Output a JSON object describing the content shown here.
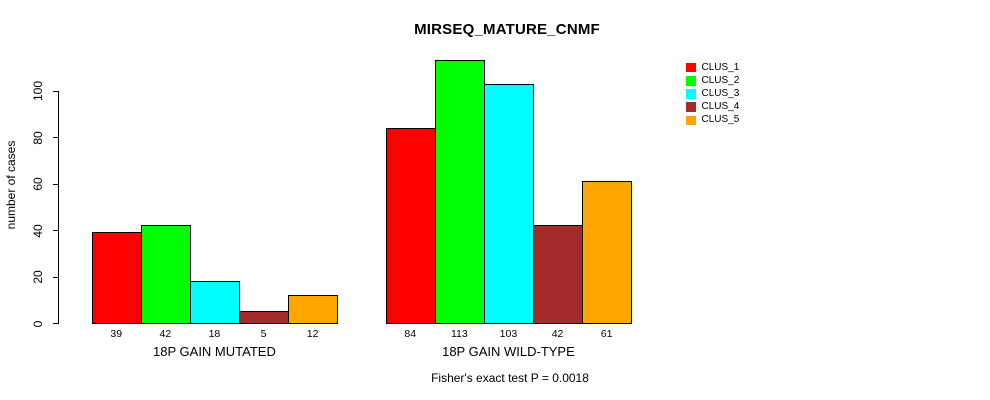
{
  "chart_data": {
    "type": "bar",
    "title": "MIRSEQ_MATURE_CNMF",
    "ylabel": "number of cases",
    "xlabel": "",
    "yticks": [
      0,
      20,
      40,
      60,
      80,
      100
    ],
    "ylim": [
      0,
      113
    ],
    "grid": false,
    "legend_position": "top-right",
    "bar_value_labels_shown": true,
    "categories": [
      "18P GAIN MUTATED",
      "18P GAIN WILD-TYPE"
    ],
    "series": [
      {
        "name": "CLUS_1",
        "color": "#ff0000",
        "values": [
          39,
          84
        ]
      },
      {
        "name": "CLUS_2",
        "color": "#00ff00",
        "values": [
          42,
          113
        ]
      },
      {
        "name": "CLUS_3",
        "color": "#00ffff",
        "values": [
          18,
          103
        ]
      },
      {
        "name": "CLUS_4",
        "color": "#a52a2a",
        "values": [
          5,
          42
        ]
      },
      {
        "name": "CLUS_5",
        "color": "#ffa500",
        "values": [
          12,
          61
        ]
      }
    ],
    "annotation": "Fisher's exact test P = 0.0018"
  },
  "colors": {
    "axis": "#000000",
    "text": "#000000",
    "background": "#ffffff"
  }
}
